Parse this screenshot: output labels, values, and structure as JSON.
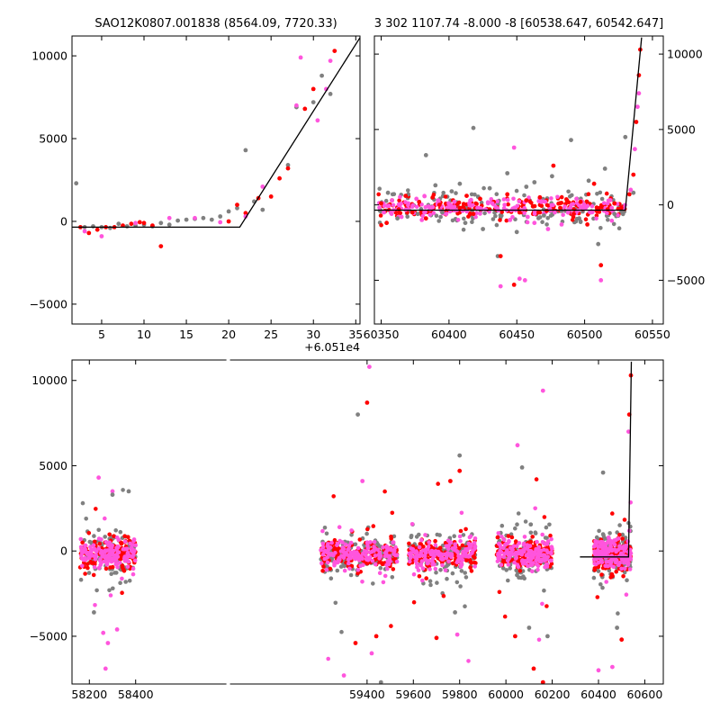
{
  "chart_data": [
    {
      "type": "scatter",
      "title": "SAO12K0807.001838 (8564.09, 7720.33)",
      "x_offset_label": "+6.051e4",
      "xlim": [
        1.5,
        35.5
      ],
      "ylim": [
        -6200,
        11200
      ],
      "xticks": [
        "5",
        "10",
        "15",
        "20",
        "25",
        "30",
        "35"
      ],
      "xtick_values": [
        5,
        10,
        15,
        20,
        25,
        30,
        35
      ],
      "yticks": [
        "−5000",
        "0",
        "5000",
        "10000"
      ],
      "ytick_values": [
        -5000,
        0,
        5000,
        10000
      ],
      "ytick_side": "left",
      "fit_line": [
        [
          1.5,
          -350
        ],
        [
          21.3,
          -350
        ],
        [
          35.5,
          11100
        ]
      ],
      "series": [
        {
          "color": "#808080",
          "points": [
            [
              2,
              2300
            ],
            [
              3,
              -350
            ],
            [
              4,
              -300
            ],
            [
              5,
              -350
            ],
            [
              6,
              -400
            ],
            [
              7,
              -150
            ],
            [
              8,
              -300
            ],
            [
              9,
              -250
            ],
            [
              10,
              -200
            ],
            [
              11,
              -300
            ],
            [
              12,
              -100
            ],
            [
              13,
              -200
            ],
            [
              14,
              50
            ],
            [
              15,
              100
            ],
            [
              16,
              150
            ],
            [
              17,
              200
            ],
            [
              18,
              100
            ],
            [
              19,
              300
            ],
            [
              20,
              600
            ],
            [
              21,
              800
            ],
            [
              22,
              4300
            ],
            [
              23,
              1200
            ],
            [
              24,
              700
            ],
            [
              27,
              3400
            ],
            [
              28,
              6900
            ],
            [
              30,
              7200
            ],
            [
              31,
              8800
            ],
            [
              32,
              7700
            ]
          ]
        },
        {
          "color": "#ff0000",
          "points": [
            [
              2.5,
              -350
            ],
            [
              3.5,
              -700
            ],
            [
              4.5,
              -500
            ],
            [
              5.5,
              -350
            ],
            [
              6.5,
              -350
            ],
            [
              7.5,
              -250
            ],
            [
              8.5,
              -150
            ],
            [
              9.5,
              -50
            ],
            [
              10,
              -100
            ],
            [
              11,
              -250
            ],
            [
              12,
              -1500
            ],
            [
              20,
              0
            ],
            [
              21,
              1000
            ],
            [
              22,
              500
            ],
            [
              23.5,
              1400
            ],
            [
              25,
              1500
            ],
            [
              26,
              2600
            ],
            [
              27,
              3200
            ],
            [
              29,
              6800
            ],
            [
              30,
              8000
            ],
            [
              32.5,
              10300
            ]
          ]
        },
        {
          "color": "#ff55dd",
          "points": [
            [
              3,
              -600
            ],
            [
              5,
              -900
            ],
            [
              9,
              -100
            ],
            [
              13,
              200
            ],
            [
              16,
              200
            ],
            [
              19,
              -50
            ],
            [
              22,
              300
            ],
            [
              24,
              2100
            ],
            [
              28.5,
              9900
            ],
            [
              28,
              7000
            ],
            [
              30.5,
              6100
            ],
            [
              31.5,
              8000
            ],
            [
              32,
              9700
            ]
          ]
        }
      ]
    },
    {
      "type": "scatter",
      "title": "3 302 1107.74 -8.000 -8 [60538.647, 60542.647]",
      "xlim": [
        60345,
        60558
      ],
      "ylim": [
        -7900,
        11200
      ],
      "xticks": [
        "60350",
        "60400",
        "60450",
        "60500",
        "60550"
      ],
      "xtick_values": [
        60350,
        60400,
        60450,
        60500,
        60550
      ],
      "yticks": [
        "−5000",
        "0",
        "5000",
        "10000"
      ],
      "ytick_values": [
        -5000,
        0,
        5000,
        10000
      ],
      "ytick_side": "right",
      "fit_line": [
        [
          60345,
          -350
        ],
        [
          60530,
          -350
        ],
        [
          60542,
          11100
        ]
      ],
      "series": [
        {
          "color": "#808080",
          "points": [
            [
              60355,
              800
            ],
            [
              60362,
              -900
            ],
            [
              60370,
              700
            ],
            [
              60377,
              -600
            ],
            [
              60383,
              3300
            ],
            [
              60390,
              1300
            ],
            [
              60395,
              -500
            ],
            [
              60402,
              900
            ],
            [
              60408,
              1400
            ],
            [
              60412,
              -1200
            ],
            [
              60418,
              5100
            ],
            [
              60425,
              -1600
            ],
            [
              60430,
              1100
            ],
            [
              60436,
              -3400
            ],
            [
              60443,
              2100
            ],
            [
              60450,
              -1800
            ],
            [
              60457,
              1200
            ],
            [
              60463,
              1500
            ],
            [
              60470,
              -700
            ],
            [
              60476,
              1900
            ],
            [
              60483,
              -400
            ],
            [
              60490,
              4300
            ],
            [
              60496,
              -900
            ],
            [
              60503,
              1600
            ],
            [
              60510,
              -2600
            ],
            [
              60515,
              2400
            ],
            [
              60522,
              -600
            ],
            [
              60530,
              4500
            ],
            [
              60536,
              800
            ]
          ]
        },
        {
          "color": "#ff0000",
          "points": [
            [
              60350,
              100
            ],
            [
              60354,
              -1200
            ],
            [
              60358,
              300
            ],
            [
              60363,
              -300
            ],
            [
              60368,
              600
            ],
            [
              60373,
              -500
            ],
            [
              60378,
              200
            ],
            [
              60383,
              -900
            ],
            [
              60388,
              500
            ],
            [
              60393,
              0
            ],
            [
              60398,
              -400
            ],
            [
              60403,
              300
            ],
            [
              60408,
              -200
            ],
            [
              60413,
              600
            ],
            [
              60418,
              -600
            ],
            [
              60423,
              400
            ],
            [
              60428,
              -300
            ],
            [
              60433,
              200
            ],
            [
              60438,
              -3400
            ],
            [
              60443,
              700
            ],
            [
              60448,
              -5300
            ],
            [
              60452,
              -500
            ],
            [
              60457,
              300
            ],
            [
              60462,
              -100
            ],
            [
              60467,
              500
            ],
            [
              60472,
              -400
            ],
            [
              60477,
              2600
            ],
            [
              60482,
              -200
            ],
            [
              60487,
              300
            ],
            [
              60492,
              -600
            ],
            [
              60497,
              200
            ],
            [
              60502,
              -1300
            ],
            [
              60507,
              1400
            ],
            [
              60512,
              -4000
            ],
            [
              60517,
              -300
            ],
            [
              60522,
              100
            ],
            [
              60527,
              -200
            ],
            [
              60533,
              700
            ],
            [
              60536,
              2000
            ],
            [
              60538,
              5500
            ],
            [
              60540,
              8600
            ],
            [
              60541,
              10300
            ]
          ]
        },
        {
          "color": "#ff55dd",
          "points": [
            [
              60352,
              -500
            ],
            [
              60358,
              300
            ],
            [
              60365,
              -800
            ],
            [
              60370,
              100
            ],
            [
              60376,
              400
            ],
            [
              60380,
              -1000
            ],
            [
              60386,
              -200
            ],
            [
              60392,
              300
            ],
            [
              60398,
              -600
            ],
            [
              60404,
              200
            ],
            [
              60410,
              -400
            ],
            [
              60415,
              100
            ],
            [
              60421,
              -200
            ],
            [
              60427,
              -300
            ],
            [
              60432,
              100
            ],
            [
              60438,
              -5400
            ],
            [
              60441,
              0
            ],
            [
              60445,
              -1000
            ],
            [
              60448,
              3800
            ],
            [
              60452,
              -4900
            ],
            [
              60456,
              -5000
            ],
            [
              60458,
              -800
            ],
            [
              60463,
              -1200
            ],
            [
              60468,
              200
            ],
            [
              60473,
              -1600
            ],
            [
              60478,
              -500
            ],
            [
              60483,
              -1300
            ],
            [
              60488,
              -300
            ],
            [
              60494,
              400
            ],
            [
              60500,
              -100
            ],
            [
              60505,
              -500
            ],
            [
              60512,
              -5000
            ],
            [
              60520,
              -200
            ],
            [
              60534,
              1000
            ],
            [
              60537,
              3700
            ],
            [
              60539,
              6500
            ],
            [
              60540,
              7400
            ]
          ]
        }
      ]
    },
    {
      "type": "scatter",
      "xlim": [
        58125,
        60680
      ],
      "ylim": [
        -7800,
        11200
      ],
      "xticks": [
        "58200",
        "58400",
        "59400",
        "59600",
        "59800",
        "60000",
        "60200",
        "60400",
        "60600"
      ],
      "xtick_values": [
        58200,
        58400,
        59400,
        59600,
        59800,
        60000,
        60200,
        60400,
        60600
      ],
      "yticks": [
        "−5000",
        "0",
        "5000",
        "10000"
      ],
      "ytick_values": [
        -5000,
        0,
        5000,
        10000
      ],
      "ytick_side": "left",
      "gap_x": [
        58450,
        59150
      ],
      "fit_line": [
        [
          60320,
          -350
        ],
        [
          60530,
          -350
        ],
        [
          60542,
          11100
        ]
      ],
      "clusters": [
        [
          58160,
          58400
        ],
        [
          59200,
          59530
        ],
        [
          59580,
          59870
        ],
        [
          59960,
          60200
        ],
        [
          60380,
          60540
        ]
      ],
      "outliers": [
        {
          "color": "#ff55dd",
          "points": [
            [
              58240,
              4300
            ],
            [
              58260,
              -4800
            ],
            [
              58270,
              -6900
            ],
            [
              58280,
              -5400
            ],
            [
              58300,
              3500
            ],
            [
              58320,
              -4600
            ],
            [
              59300,
              -7300
            ],
            [
              59380,
              4100
            ],
            [
              59410,
              10800
            ],
            [
              59420,
              -6000
            ],
            [
              59790,
              -4900
            ],
            [
              60050,
              6200
            ],
            [
              60160,
              9400
            ],
            [
              60400,
              -7000
            ],
            [
              60460,
              -6800
            ],
            [
              60530,
              7000
            ]
          ]
        },
        {
          "color": "#ff0000",
          "points": [
            [
              59350,
              -5400
            ],
            [
              59400,
              8700
            ],
            [
              59440,
              -5000
            ],
            [
              59700,
              -5100
            ],
            [
              59760,
              4100
            ],
            [
              59800,
              4700
            ],
            [
              60040,
              -5000
            ],
            [
              60120,
              -6900
            ],
            [
              60160,
              -7700
            ],
            [
              60500,
              -5200
            ],
            [
              60533,
              8000
            ],
            [
              60540,
              10300
            ]
          ]
        },
        {
          "color": "#808080",
          "points": [
            [
              58220,
              -3600
            ],
            [
              58300,
              3300
            ],
            [
              58370,
              3500
            ],
            [
              59360,
              8000
            ],
            [
              59460,
              -7700
            ],
            [
              59780,
              -3600
            ],
            [
              59800,
              5600
            ],
            [
              60070,
              4900
            ],
            [
              60100,
              -4500
            ],
            [
              60180,
              -5000
            ],
            [
              60420,
              4600
            ],
            [
              60480,
              -4500
            ]
          ]
        }
      ]
    }
  ]
}
